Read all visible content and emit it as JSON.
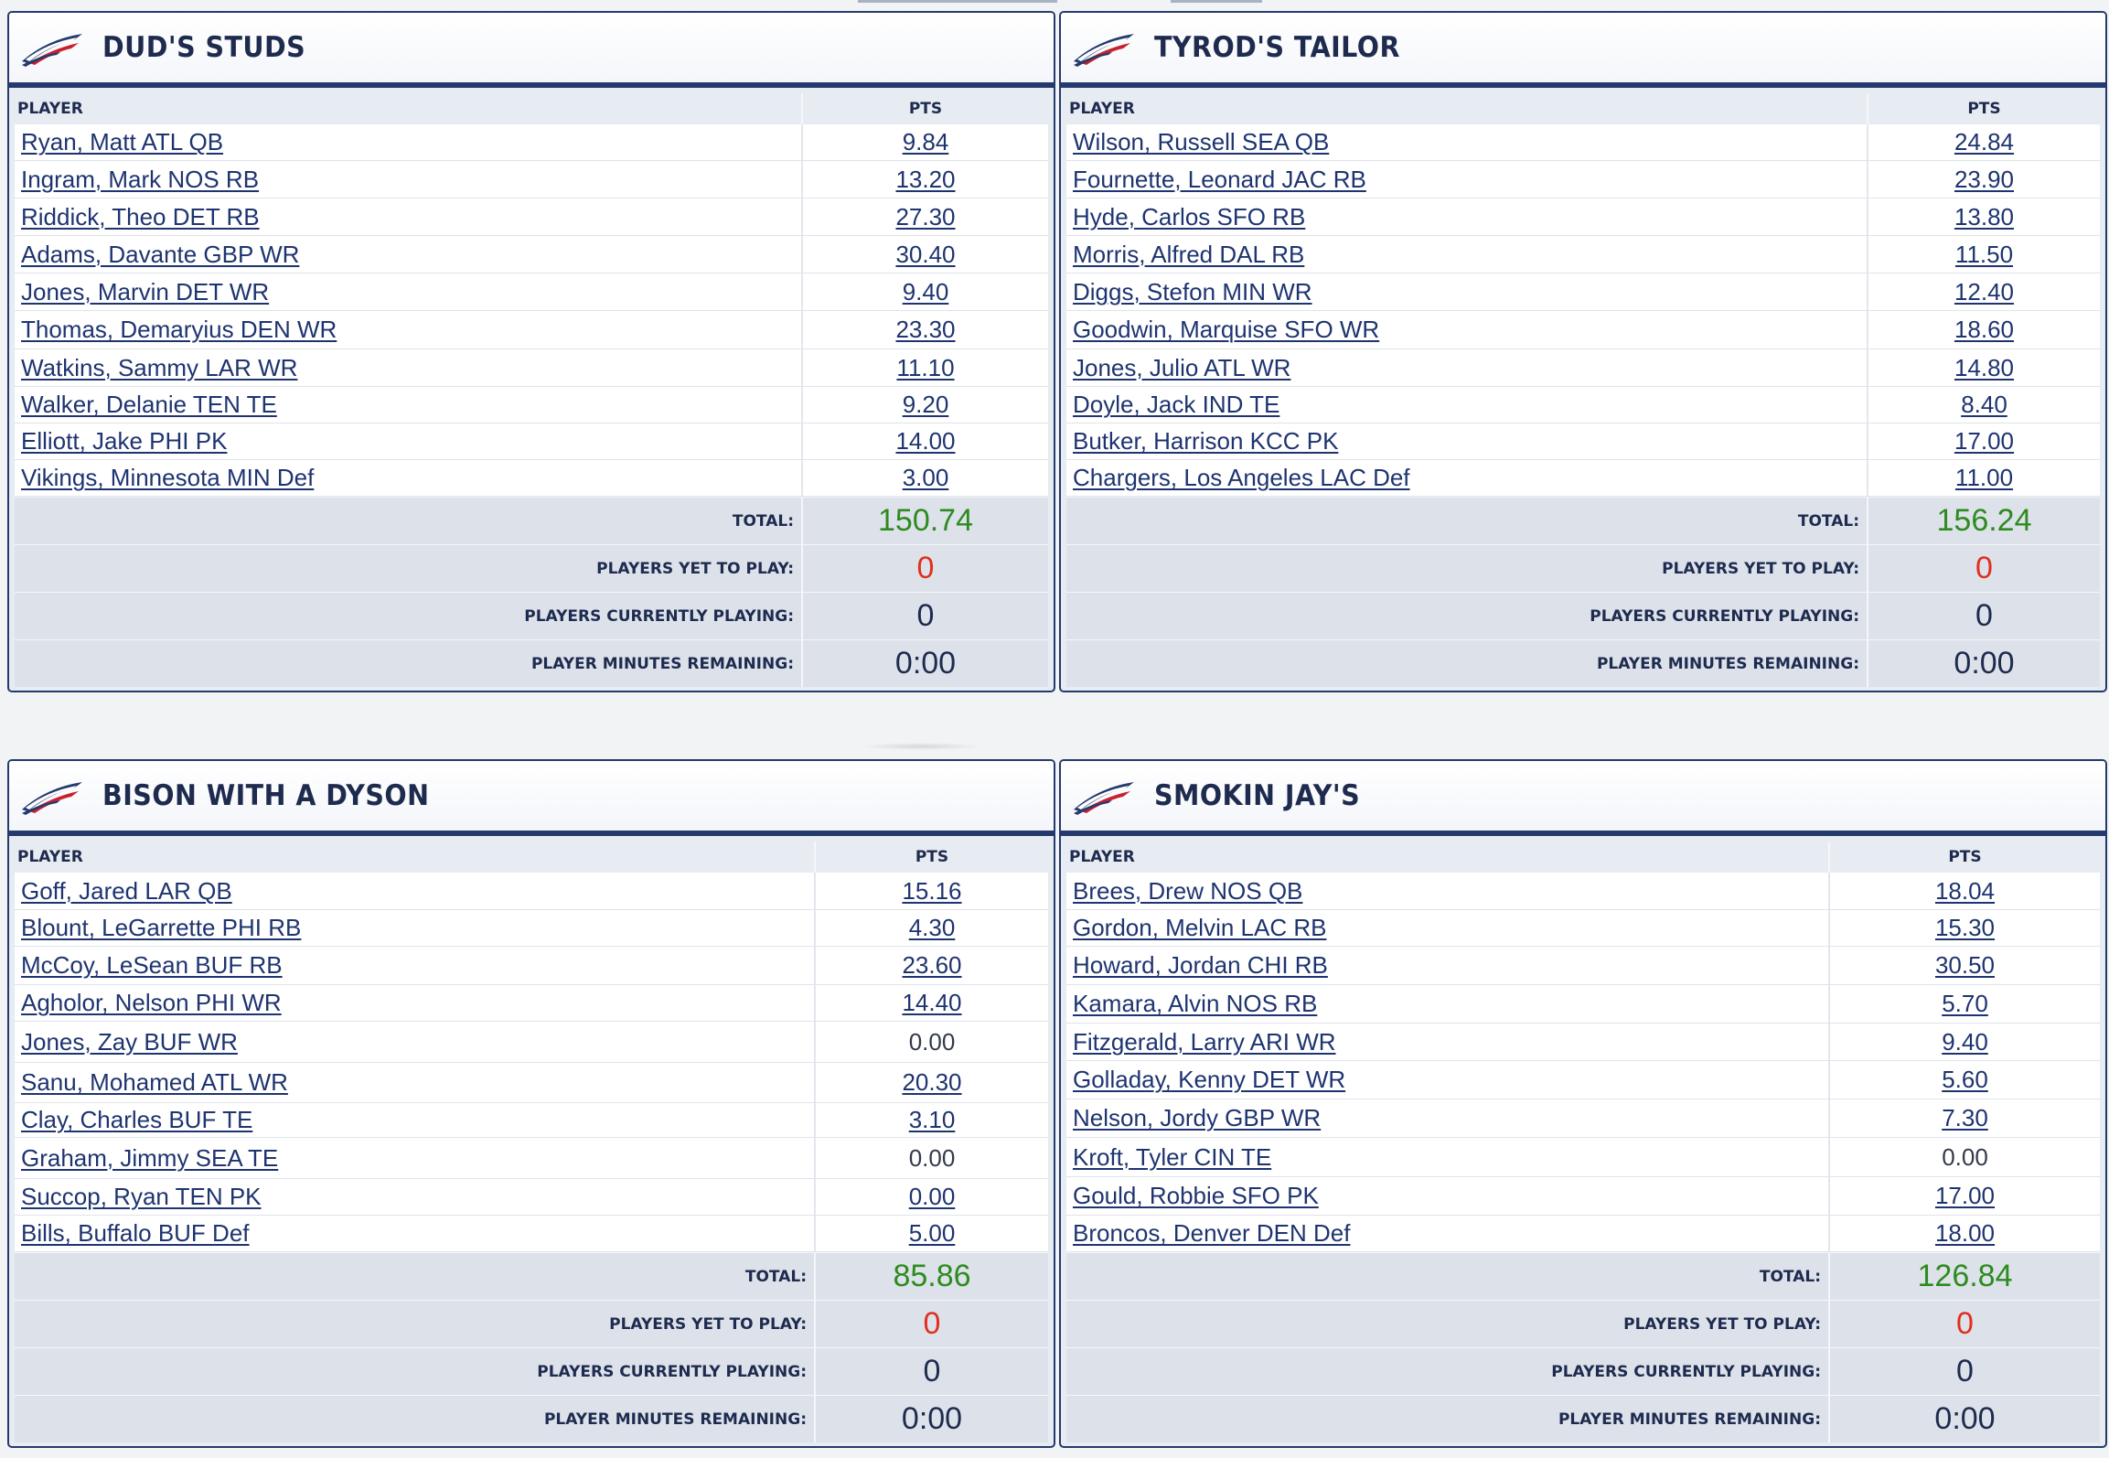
{
  "labels": {
    "player_header": "PLAYER",
    "pts_header": "PTS",
    "total": "TOTAL:",
    "yet_to_play": "PLAYERS YET TO PLAY:",
    "currently_playing": "PLAYERS CURRENTLY PLAYING:",
    "minutes_remaining": "PLAYER MINUTES REMAINING:"
  },
  "colors": {
    "navy": "#243a6e",
    "total_green": "#2e8b1f",
    "yet_red": "#e0301e"
  },
  "teams": [
    {
      "name": "DUD'S STUDS",
      "players": [
        {
          "name": "Ryan, Matt ATL QB",
          "pts": "9.84",
          "linked": true
        },
        {
          "name": "Ingram, Mark NOS RB",
          "pts": "13.20",
          "linked": true
        },
        {
          "name": "Riddick, Theo DET RB",
          "pts": "27.30",
          "linked": true
        },
        {
          "name": "Adams, Davante GBP WR",
          "pts": "30.40",
          "linked": true
        },
        {
          "name": "Jones, Marvin DET WR",
          "pts": "9.40",
          "linked": true
        },
        {
          "name": "Thomas, Demaryius DEN WR",
          "pts": "23.30",
          "linked": true
        },
        {
          "name": "Watkins, Sammy LAR WR",
          "pts": "11.10",
          "linked": true
        },
        {
          "name": "Walker, Delanie TEN TE",
          "pts": "9.20",
          "linked": true
        },
        {
          "name": "Elliott, Jake PHI PK",
          "pts": "14.00",
          "linked": true
        },
        {
          "name": "Vikings, Minnesota MIN Def",
          "pts": "3.00",
          "linked": true
        }
      ],
      "total": "150.74",
      "yet_to_play": "0",
      "currently_playing": "0",
      "minutes_remaining": "0:00"
    },
    {
      "name": "TYROD'S TAILOR",
      "players": [
        {
          "name": "Wilson, Russell SEA QB",
          "pts": "24.84",
          "linked": true
        },
        {
          "name": "Fournette, Leonard JAC RB",
          "pts": "23.90",
          "linked": true
        },
        {
          "name": "Hyde, Carlos SFO RB",
          "pts": "13.80",
          "linked": true
        },
        {
          "name": "Morris, Alfred DAL RB",
          "pts": "11.50",
          "linked": true
        },
        {
          "name": "Diggs, Stefon MIN WR",
          "pts": "12.40",
          "linked": true
        },
        {
          "name": "Goodwin, Marquise SFO WR",
          "pts": "18.60",
          "linked": true
        },
        {
          "name": "Jones, Julio ATL WR",
          "pts": "14.80",
          "linked": true
        },
        {
          "name": "Doyle, Jack IND TE",
          "pts": "8.40",
          "linked": true
        },
        {
          "name": "Butker, Harrison KCC PK",
          "pts": "17.00",
          "linked": true
        },
        {
          "name": "Chargers, Los Angeles LAC Def",
          "pts": "11.00",
          "linked": true
        }
      ],
      "total": "156.24",
      "yet_to_play": "0",
      "currently_playing": "0",
      "minutes_remaining": "0:00"
    },
    {
      "name": "BISON WITH A DYSON",
      "players": [
        {
          "name": "Goff, Jared LAR QB",
          "pts": "15.16",
          "linked": true
        },
        {
          "name": "Blount, LeGarrette PHI RB",
          "pts": "4.30",
          "linked": true
        },
        {
          "name": "McCoy, LeSean BUF RB",
          "pts": "23.60",
          "linked": true
        },
        {
          "name": "Agholor, Nelson PHI WR",
          "pts": "14.40",
          "linked": true
        },
        {
          "name": "Jones, Zay BUF WR",
          "pts": "0.00",
          "linked": false
        },
        {
          "name": "Sanu, Mohamed ATL WR",
          "pts": "20.30",
          "linked": true
        },
        {
          "name": "Clay, Charles BUF TE",
          "pts": "3.10",
          "linked": true
        },
        {
          "name": "Graham, Jimmy SEA TE",
          "pts": "0.00",
          "linked": false
        },
        {
          "name": "Succop, Ryan TEN PK",
          "pts": "0.00",
          "linked": true
        },
        {
          "name": "Bills, Buffalo BUF Def",
          "pts": "5.00",
          "linked": true
        }
      ],
      "total": "85.86",
      "yet_to_play": "0",
      "currently_playing": "0",
      "minutes_remaining": "0:00"
    },
    {
      "name": "SMOKIN JAY'S",
      "players": [
        {
          "name": "Brees, Drew NOS QB",
          "pts": "18.04",
          "linked": true
        },
        {
          "name": "Gordon, Melvin LAC RB",
          "pts": "15.30",
          "linked": true
        },
        {
          "name": "Howard, Jordan CHI RB",
          "pts": "30.50",
          "linked": true
        },
        {
          "name": "Kamara, Alvin NOS RB",
          "pts": "5.70",
          "linked": true
        },
        {
          "name": "Fitzgerald, Larry ARI WR",
          "pts": "9.40",
          "linked": true
        },
        {
          "name": "Golladay, Kenny DET WR",
          "pts": "5.60",
          "linked": true
        },
        {
          "name": "Nelson, Jordy GBP WR",
          "pts": "7.30",
          "linked": true
        },
        {
          "name": "Kroft, Tyler CIN TE",
          "pts": "0.00",
          "linked": false
        },
        {
          "name": "Gould, Robbie SFO PK",
          "pts": "17.00",
          "linked": true
        },
        {
          "name": "Broncos, Denver DEN Def",
          "pts": "18.00",
          "linked": true
        }
      ],
      "total": "126.84",
      "yet_to_play": "0",
      "currently_playing": "0",
      "minutes_remaining": "0:00"
    }
  ]
}
